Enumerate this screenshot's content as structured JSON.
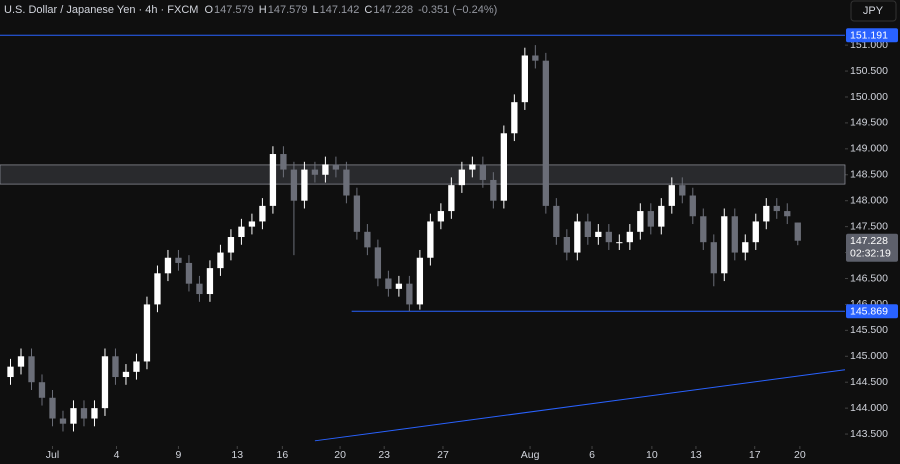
{
  "header": {
    "title": "U.S. Dollar / Japanese Yen · 4h · FXCM",
    "ohlc": [
      {
        "label": "O",
        "value": "147.579"
      },
      {
        "label": "H",
        "value": "147.579"
      },
      {
        "label": "L",
        "value": "147.142"
      },
      {
        "label": "C",
        "value": "147.228"
      }
    ],
    "change": "-0.351 (−0.24%)",
    "currency": "JPY"
  },
  "chart_data": {
    "type": "candlestick",
    "x": [
      -4,
      -3,
      -2,
      -1,
      0,
      1,
      2,
      3,
      4,
      5,
      6,
      7,
      8,
      9,
      10,
      11,
      12,
      13,
      14,
      15,
      16,
      17,
      18,
      19,
      20,
      21,
      22,
      23,
      24,
      25,
      26,
      27,
      28,
      29,
      30,
      31,
      32,
      33,
      34,
      35,
      36,
      37,
      38,
      39,
      40,
      41,
      42,
      43,
      44,
      45,
      46,
      47,
      48,
      49,
      50,
      51,
      52,
      53,
      54,
      55,
      56,
      57,
      58,
      59,
      60,
      61,
      62,
      63,
      64,
      65,
      66,
      67,
      68,
      69,
      70,
      71
    ],
    "open": [
      144.6,
      144.8,
      145.0,
      144.5,
      144.2,
      143.8,
      143.7,
      144.0,
      143.8,
      144.0,
      145.0,
      144.6,
      144.7,
      144.9,
      146.0,
      146.6,
      146.9,
      146.8,
      146.4,
      146.2,
      146.7,
      147.0,
      147.3,
      147.5,
      147.6,
      147.9,
      148.9,
      148.6,
      148.0,
      148.6,
      148.5,
      148.7,
      148.6,
      148.1,
      147.4,
      147.1,
      146.5,
      146.3,
      146.4,
      146.0,
      146.9,
      147.6,
      147.8,
      148.3,
      148.6,
      148.7,
      148.4,
      148.0,
      149.3,
      149.9,
      150.8,
      150.7,
      147.9,
      147.3,
      147.0,
      147.6,
      147.3,
      147.4,
      147.2,
      147.2,
      147.4,
      147.8,
      147.5,
      147.9,
      148.3,
      148.1,
      147.7,
      147.2,
      146.6,
      147.7,
      147.0,
      147.2,
      147.6,
      147.9,
      147.8,
      147.579
    ],
    "high": [
      144.95,
      145.15,
      145.15,
      144.65,
      144.35,
      143.95,
      144.15,
      144.15,
      144.15,
      145.15,
      145.15,
      144.85,
      145.05,
      146.15,
      146.75,
      147.05,
      147.05,
      146.95,
      146.55,
      146.85,
      147.15,
      147.45,
      147.65,
      147.75,
      148.05,
      149.05,
      149.05,
      148.75,
      148.75,
      148.75,
      148.85,
      148.85,
      148.75,
      148.25,
      147.55,
      147.25,
      146.65,
      146.55,
      146.55,
      147.05,
      147.75,
      147.95,
      148.45,
      148.75,
      148.85,
      148.85,
      148.55,
      149.45,
      150.05,
      150.95,
      151.0,
      150.85,
      148.05,
      147.45,
      147.75,
      147.75,
      147.55,
      147.55,
      147.35,
      147.55,
      147.95,
      147.95,
      148.05,
      148.45,
      148.45,
      148.25,
      147.85,
      147.35,
      147.85,
      147.85,
      147.35,
      147.75,
      148.05,
      148.05,
      147.95,
      147.579
    ],
    "low": [
      144.45,
      144.65,
      144.35,
      144.05,
      143.65,
      143.55,
      143.55,
      143.65,
      143.65,
      143.85,
      144.45,
      144.45,
      144.55,
      144.75,
      145.85,
      146.45,
      146.65,
      146.25,
      146.05,
      146.05,
      146.55,
      146.85,
      147.15,
      147.35,
      147.45,
      147.75,
      148.45,
      146.95,
      147.85,
      148.35,
      148.35,
      148.45,
      147.95,
      147.25,
      146.95,
      146.35,
      146.15,
      146.15,
      145.869,
      145.9,
      146.75,
      147.45,
      147.65,
      148.15,
      148.45,
      148.25,
      147.85,
      147.85,
      149.15,
      149.75,
      150.55,
      147.75,
      147.15,
      146.85,
      146.85,
      147.15,
      147.15,
      147.05,
      147.05,
      147.05,
      147.25,
      147.35,
      147.35,
      147.75,
      147.95,
      147.55,
      147.05,
      146.35,
      146.45,
      146.85,
      146.85,
      147.05,
      147.45,
      147.65,
      147.55,
      147.142
    ],
    "close": [
      144.8,
      145.0,
      144.5,
      144.2,
      143.8,
      143.7,
      144.0,
      143.8,
      144.0,
      145.0,
      144.6,
      144.7,
      144.9,
      146.0,
      146.6,
      146.9,
      146.8,
      146.4,
      146.2,
      146.7,
      147.0,
      147.3,
      147.5,
      147.6,
      147.9,
      148.9,
      148.6,
      148.0,
      148.6,
      148.5,
      148.7,
      148.6,
      148.1,
      147.4,
      147.1,
      146.5,
      146.3,
      146.4,
      146.0,
      146.9,
      147.6,
      147.8,
      148.3,
      148.6,
      148.7,
      148.4,
      148.0,
      149.3,
      149.9,
      150.8,
      150.7,
      147.9,
      147.3,
      147.0,
      147.6,
      147.3,
      147.4,
      147.2,
      147.2,
      147.4,
      147.8,
      147.5,
      147.9,
      148.3,
      148.1,
      147.7,
      147.2,
      146.6,
      147.7,
      147.0,
      147.2,
      147.6,
      147.9,
      147.8,
      147.7,
      147.228
    ],
    "up_color": "#ffffff",
    "down_color": "#6b6e78",
    "xlim": [
      -5,
      75.5
    ],
    "xticks": [
      {
        "value": 0,
        "label": "Jul"
      },
      {
        "value": 6.1,
        "label": "4"
      },
      {
        "value": 12,
        "label": "9"
      },
      {
        "value": 17.6,
        "label": "13"
      },
      {
        "value": 21.9,
        "label": "16"
      },
      {
        "value": 27.4,
        "label": "20"
      },
      {
        "value": 31.6,
        "label": "23"
      },
      {
        "value": 37.2,
        "label": "27"
      },
      {
        "value": 45.5,
        "label": "Aug"
      },
      {
        "value": 51.4,
        "label": "6"
      },
      {
        "value": 57.1,
        "label": "10"
      },
      {
        "value": 61.3,
        "label": "13"
      },
      {
        "value": 66.9,
        "label": "17"
      },
      {
        "value": 71.2,
        "label": "20"
      }
    ],
    "ylim": [
      143.27,
      151.87
    ],
    "yticks": [
      {
        "value": 143.5,
        "label": "143.500"
      },
      {
        "value": 144,
        "label": "144.000"
      },
      {
        "value": 144.5,
        "label": "144.500"
      },
      {
        "value": 145,
        "label": "145.000"
      },
      {
        "value": 145.5,
        "label": "145.500"
      },
      {
        "value": 146,
        "label": "146.000"
      },
      {
        "value": 146.5,
        "label": "146.500"
      },
      {
        "value": 147,
        "label": "147.000"
      },
      {
        "value": 147.5,
        "label": "147.500"
      },
      {
        "value": 148,
        "label": "148.000"
      },
      {
        "value": 148.5,
        "label": "148.500"
      },
      {
        "value": 149,
        "label": "149.000"
      },
      {
        "value": 149.5,
        "label": "149.500"
      },
      {
        "value": 150,
        "label": "150.000"
      },
      {
        "value": 150.5,
        "label": "150.500"
      },
      {
        "value": 151,
        "label": "151.000"
      }
    ],
    "levels": [
      {
        "value": 151.191,
        "from": -5
      },
      {
        "value": 145.869,
        "from": 28.5
      }
    ],
    "level_color": "#2962ff",
    "zone": [
      148.32,
      148.69
    ],
    "trendline": {
      "x": [
        25,
        75.5
      ],
      "y": [
        143.37,
        144.74
      ]
    },
    "last_price": 147.228,
    "countdown": "02:32:19"
  }
}
